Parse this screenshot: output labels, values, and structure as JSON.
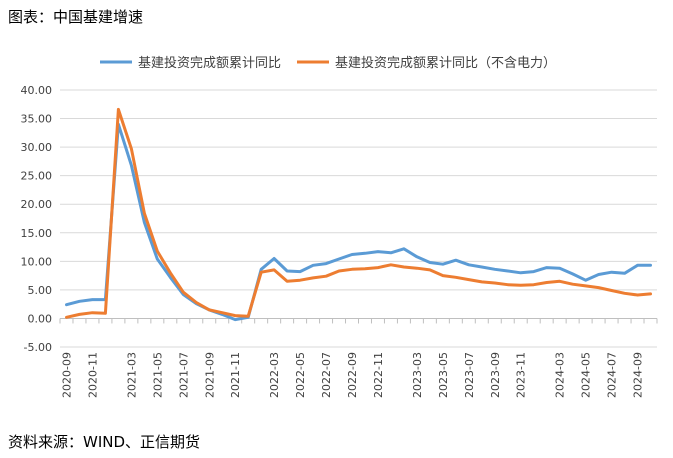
{
  "figure": {
    "title": "图表：中国基建增速",
    "source": "资料来源：WIND、正信期货"
  },
  "chart_data": {
    "type": "line",
    "ylim": [
      -5,
      40
    ],
    "y_ticks": [
      "-5.00",
      "0.00",
      "5.00",
      "10.00",
      "15.00",
      "20.00",
      "25.00",
      "30.00",
      "35.00",
      "40.00"
    ],
    "y_tick_values": [
      -5,
      0,
      5,
      10,
      15,
      20,
      25,
      30,
      35,
      40
    ],
    "grid": true,
    "legend_position": "top",
    "x": [
      "2020-09",
      "2020-10",
      "2020-11",
      "2020-12",
      "2021-02",
      "2021-03",
      "2021-04",
      "2021-05",
      "2021-06",
      "2021-07",
      "2021-08",
      "2021-09",
      "2021-10",
      "2021-11",
      "2021-12",
      "2022-02",
      "2022-03",
      "2022-04",
      "2022-05",
      "2022-06",
      "2022-07",
      "2022-08",
      "2022-09",
      "2022-10",
      "2022-11",
      "2022-12",
      "2023-02",
      "2023-03",
      "2023-04",
      "2023-05",
      "2023-06",
      "2023-07",
      "2023-08",
      "2023-09",
      "2023-10",
      "2023-11",
      "2023-12",
      "2024-02",
      "2024-03",
      "2024-04",
      "2024-05",
      "2024-06",
      "2024-07",
      "2024-08",
      "2024-09",
      "2024-10"
    ],
    "x_tick_labels": [
      "2020-09",
      "2020-11",
      "2021-01",
      "2021-03",
      "2021-05",
      "2021-07",
      "2021-09",
      "2021-11",
      "2022-01",
      "2022-03",
      "2022-05",
      "2022-07",
      "2022-09",
      "2022-11",
      "2023-01",
      "2023-03",
      "2023-05",
      "2023-07",
      "2023-09",
      "2023-11",
      "2024-01",
      "2024-03",
      "2024-05",
      "2024-07",
      "2024-09"
    ],
    "series": [
      {
        "name": "基建投资完成额累计同比",
        "color": "#5B9BD5",
        "values": [
          2.4,
          3.0,
          3.3,
          3.3,
          34.0,
          26.8,
          16.8,
          10.4,
          7.2,
          4.2,
          2.6,
          1.5,
          0.7,
          -0.2,
          0.2,
          8.6,
          10.5,
          8.3,
          8.2,
          9.3,
          9.6,
          10.4,
          11.2,
          11.4,
          11.7,
          11.5,
          12.2,
          10.8,
          9.8,
          9.5,
          10.2,
          9.4,
          9.0,
          8.6,
          8.3,
          8.0,
          8.2,
          8.9,
          8.8,
          7.8,
          6.7,
          7.7,
          8.1,
          7.9,
          9.3,
          9.3
        ]
      },
      {
        "name": "基建投资完成额累计同比（不含电力）",
        "color": "#ED7D31",
        "values": [
          0.2,
          0.7,
          1.0,
          0.9,
          36.6,
          29.7,
          18.4,
          11.8,
          8.0,
          4.6,
          2.8,
          1.5,
          1.0,
          0.5,
          0.4,
          8.1,
          8.5,
          6.5,
          6.7,
          7.1,
          7.4,
          8.3,
          8.6,
          8.7,
          8.9,
          9.4,
          9.0,
          8.8,
          8.5,
          7.5,
          7.2,
          6.8,
          6.4,
          6.2,
          5.9,
          5.8,
          5.9,
          6.3,
          6.5,
          6.0,
          5.7,
          5.4,
          4.9,
          4.4,
          4.1,
          4.3
        ]
      }
    ]
  }
}
